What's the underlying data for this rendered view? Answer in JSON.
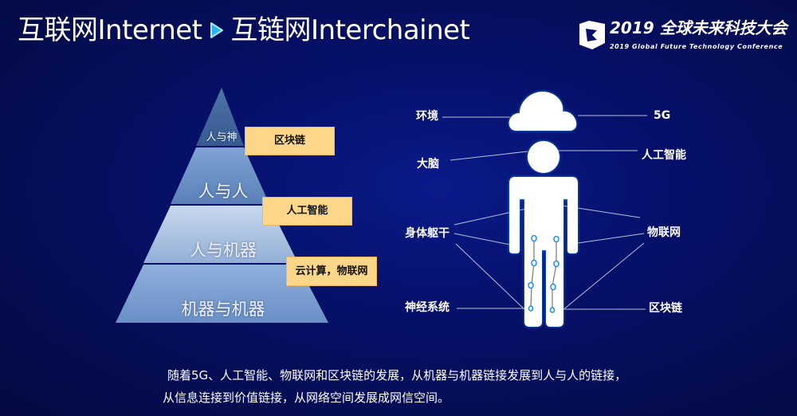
{
  "header": {
    "title_left": "互联网Internet",
    "title_right": "互链网Interchainet",
    "arrow_icon": "play-arrow-icon"
  },
  "logo": {
    "main": "2019 全球未来科技大会",
    "sub": "2019 Global Future Technology Conference"
  },
  "pyramid": {
    "tiers": [
      "人与神",
      "人与人",
      "人与机器",
      "机器与机器"
    ],
    "tags": [
      "区块链",
      "人工智能",
      "云计算，物联网"
    ]
  },
  "figure": {
    "left_labels": [
      "环境",
      "大脑",
      "身体躯干",
      "神经系统"
    ],
    "right_labels": [
      "5G",
      "人工智能",
      "物联网",
      "区块链"
    ]
  },
  "caption": {
    "line1": "随着5G、人工智能、物联网和区块链的发展，从机器与机器链接发展到人与人的链接，",
    "line2": "从信息连接到价值链接，从网络空间发展成网信空间。"
  },
  "colors": {
    "background": "#061068",
    "tag": "#fcd78a",
    "figure_glow": "#1a8cff",
    "arrow": "#2ab4f0"
  }
}
